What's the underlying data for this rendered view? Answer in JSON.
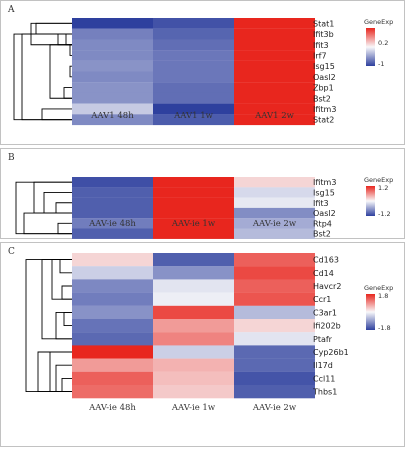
{
  "chart_data": [
    {
      "type": "heatmap",
      "panel_label": "A",
      "rows": [
        "Stat1",
        "Ifit3b",
        "Ifit3",
        "Irf7",
        "Isg15",
        "Oasl2",
        "Zbp1",
        "Bst2",
        "Ifitm3",
        "Stat2"
      ],
      "columns": [
        "AAV1 48h",
        "AAV1 1w",
        "AAV1 2w"
      ],
      "values": [
        [
          -1.0,
          -0.9,
          1.0
        ],
        [
          -0.65,
          -0.8,
          1.0
        ],
        [
          -0.6,
          -0.75,
          1.0
        ],
        [
          -0.6,
          -0.7,
          1.0
        ],
        [
          -0.55,
          -0.7,
          1.0
        ],
        [
          -0.6,
          -0.7,
          1.0
        ],
        [
          -0.55,
          -0.75,
          1.0
        ],
        [
          -0.55,
          -0.75,
          1.0
        ],
        [
          -0.25,
          -1.0,
          1.0
        ],
        [
          -0.6,
          -0.85,
          1.0
        ]
      ],
      "legend": {
        "title": "GeneExp",
        "ticks": [
          "0.2",
          "-1"
        ],
        "min": -1,
        "max": 1
      }
    },
    {
      "type": "heatmap",
      "panel_label": "B",
      "rows": [
        "Ifitm3",
        "Isg15",
        "Ifit3",
        "Oasl2",
        "Rtp4",
        "Bst2"
      ],
      "columns": [
        "AAV-ie 48h",
        "AAV-ie 1w",
        "AAV-ie 2w"
      ],
      "values": [
        [
          -1.1,
          1.2,
          0.2
        ],
        [
          -1.0,
          1.2,
          -0.2
        ],
        [
          -1.0,
          1.2,
          -0.1
        ],
        [
          -1.0,
          1.2,
          -0.7
        ],
        [
          -0.8,
          1.2,
          -0.5
        ],
        [
          -1.0,
          1.2,
          -0.4
        ]
      ],
      "legend": {
        "title": "GeneExp",
        "ticks": [
          "1.2",
          "-1.2"
        ],
        "min": -1.2,
        "max": 1.2
      }
    },
    {
      "type": "heatmap",
      "panel_label": "C",
      "rows": [
        "Cd163",
        "Cd14",
        "Havcr2",
        "Ccr1",
        "C3ar1",
        "Ifi202b",
        "Ptafr",
        "Cyp26b1",
        "Il17d",
        "Ccl11",
        "Thbs1"
      ],
      "columns": [
        "AAV-ie 48h",
        "AAV-ie 1w",
        "AAV-ie 2w"
      ],
      "values": [
        [
          0.3,
          -1.5,
          1.3
        ],
        [
          -0.4,
          -1.0,
          1.5
        ],
        [
          -1.1,
          -0.2,
          1.3
        ],
        [
          -1.2,
          -0.1,
          1.4
        ],
        [
          -1.0,
          1.5,
          -0.6
        ],
        [
          -1.3,
          0.8,
          0.3
        ],
        [
          -1.4,
          1.0,
          -0.2
        ],
        [
          1.8,
          -0.4,
          -1.4
        ],
        [
          0.8,
          0.6,
          -1.4
        ],
        [
          1.3,
          0.5,
          -1.6
        ],
        [
          1.2,
          0.4,
          -1.5
        ]
      ],
      "legend": {
        "title": "GeneExp",
        "ticks": [
          "1.8",
          "-1.8"
        ],
        "min": -1.8,
        "max": 1.8
      }
    }
  ]
}
